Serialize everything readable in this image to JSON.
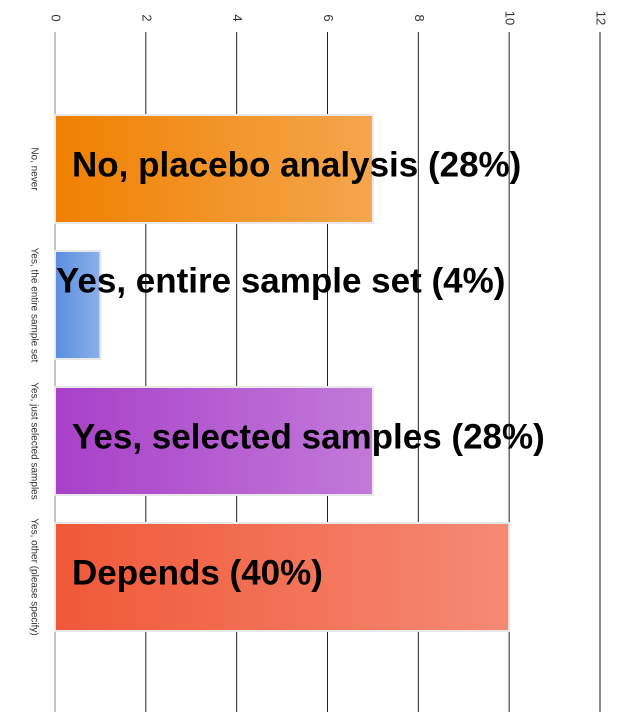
{
  "chart_data": {
    "type": "bar",
    "orientation": "horizontal",
    "categories": [
      "No, never",
      "Yes, the entire sample set",
      "Yes, just selected samples",
      "Yes, other (please specify)"
    ],
    "values": [
      7,
      1,
      7,
      10
    ],
    "colors": [
      "#f08000",
      "#5a8ee0",
      "#a840c8",
      "#f05838"
    ],
    "xlim": [
      0,
      12
    ],
    "xticks": [
      0,
      2,
      4,
      6,
      8,
      10,
      12
    ],
    "grid": true,
    "annotations": [
      "No, placebo analysis (28%)",
      "Yes, entire sample set (4%)",
      "Yes, selected samples (28%)",
      "Depends (40%)"
    ]
  }
}
